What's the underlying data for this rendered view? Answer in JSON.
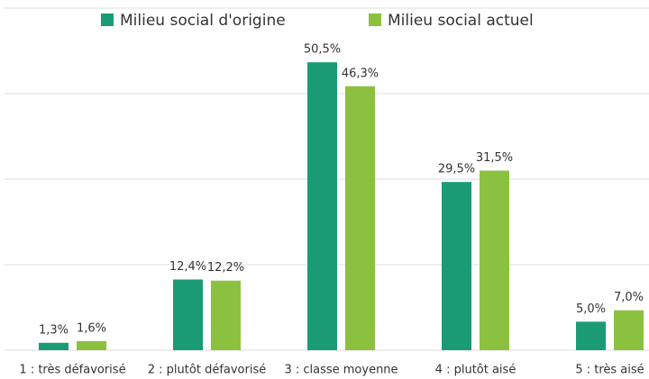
{
  "chart_data": {
    "type": "bar",
    "categories": [
      "1 : très défavorisé",
      "2 : plutôt défavorisé",
      "3 : classe moyenne",
      "4 : plutôt aisé",
      "5 : très aisé"
    ],
    "series": [
      {
        "name": "Milieu social d'origine",
        "color": "#1a9b76",
        "values": [
          1.3,
          12.4,
          50.5,
          29.5,
          5.0
        ],
        "value_labels": [
          "1,3%",
          "12,4%",
          "50,5%",
          "29,5%",
          "5,0%"
        ]
      },
      {
        "name": "Milieu social actuel",
        "color": "#8cc140",
        "values": [
          1.6,
          12.2,
          46.3,
          31.5,
          7.0
        ],
        "value_labels": [
          "1,6%",
          "12,2%",
          "46,3%",
          "31,5%",
          "7,0%"
        ]
      }
    ],
    "ylim": [
      0,
      60
    ],
    "yticks": [
      0,
      15,
      30,
      45,
      60
    ],
    "grid": true,
    "legend": "top"
  }
}
